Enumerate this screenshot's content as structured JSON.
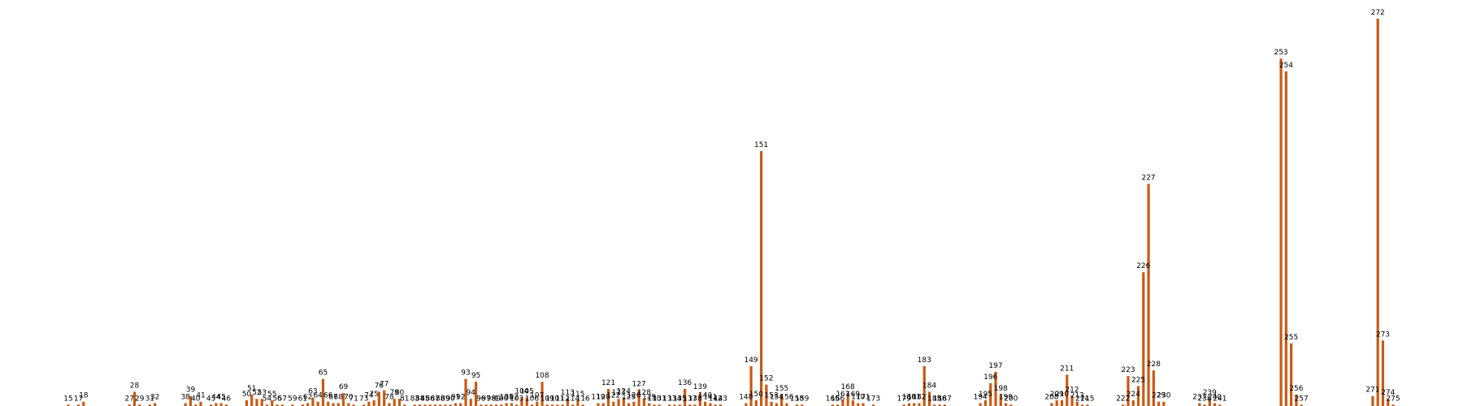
{
  "chart_data": {
    "type": "bar",
    "title": "",
    "xlabel": "",
    "ylabel": "",
    "ylim": [
      0,
      272
    ],
    "grid": false,
    "legend": "none",
    "bar_color": "#c85a14",
    "points": [
      {
        "label": "15",
        "x": 15,
        "value": 1
      },
      {
        "label": "17",
        "x": 17,
        "value": 1
      },
      {
        "label": "18",
        "x": 18,
        "value": 3
      },
      {
        "label": "27",
        "x": 27,
        "value": 1
      },
      {
        "label": "28",
        "x": 28,
        "value": 10
      },
      {
        "label": "29",
        "x": 29,
        "value": 1
      },
      {
        "label": "31",
        "x": 31,
        "value": 1
      },
      {
        "label": "32",
        "x": 32,
        "value": 2
      },
      {
        "label": "38",
        "x": 38,
        "value": 2
      },
      {
        "label": "39",
        "x": 39,
        "value": 7
      },
      {
        "label": "40",
        "x": 40,
        "value": 1
      },
      {
        "label": "41",
        "x": 41,
        "value": 3
      },
      {
        "label": "43",
        "x": 43,
        "value": 1
      },
      {
        "label": "44",
        "x": 44,
        "value": 2
      },
      {
        "label": "45",
        "x": 45,
        "value": 2
      },
      {
        "label": "46",
        "x": 46,
        "value": 1
      },
      {
        "label": "50",
        "x": 50,
        "value": 4
      },
      {
        "label": "51",
        "x": 51,
        "value": 8
      },
      {
        "label": "52",
        "x": 52,
        "value": 5
      },
      {
        "label": "53",
        "x": 53,
        "value": 5
      },
      {
        "label": "54",
        "x": 54,
        "value": 1
      },
      {
        "label": "55",
        "x": 55,
        "value": 4
      },
      {
        "label": "56",
        "x": 56,
        "value": 1
      },
      {
        "label": "57",
        "x": 57,
        "value": 1
      },
      {
        "label": "59",
        "x": 59,
        "value": 1
      },
      {
        "label": "61",
        "x": 61,
        "value": 1
      },
      {
        "label": "62",
        "x": 62,
        "value": 2
      },
      {
        "label": "63",
        "x": 63,
        "value": 6
      },
      {
        "label": "64",
        "x": 64,
        "value": 3
      },
      {
        "label": "65",
        "x": 65,
        "value": 19
      },
      {
        "label": "66",
        "x": 66,
        "value": 3
      },
      {
        "label": "67",
        "x": 67,
        "value": 2
      },
      {
        "label": "68",
        "x": 68,
        "value": 2
      },
      {
        "label": "69",
        "x": 69,
        "value": 9
      },
      {
        "label": "70",
        "x": 70,
        "value": 2
      },
      {
        "label": "71",
        "x": 71,
        "value": 1
      },
      {
        "label": "73",
        "x": 73,
        "value": 1
      },
      {
        "label": "74",
        "x": 74,
        "value": 3
      },
      {
        "label": "75",
        "x": 75,
        "value": 4
      },
      {
        "label": "76",
        "x": 76,
        "value": 10
      },
      {
        "label": "77",
        "x": 77,
        "value": 11
      },
      {
        "label": "78",
        "x": 78,
        "value": 2
      },
      {
        "label": "79",
        "x": 79,
        "value": 5
      },
      {
        "label": "80",
        "x": 80,
        "value": 5
      },
      {
        "label": "81",
        "x": 81,
        "value": 1
      },
      {
        "label": "83",
        "x": 83,
        "value": 1
      },
      {
        "label": "84",
        "x": 84,
        "value": 1
      },
      {
        "label": "85",
        "x": 85,
        "value": 1
      },
      {
        "label": "86",
        "x": 86,
        "value": 1
      },
      {
        "label": "87",
        "x": 87,
        "value": 1
      },
      {
        "label": "88",
        "x": 88,
        "value": 1
      },
      {
        "label": "89",
        "x": 89,
        "value": 1
      },
      {
        "label": "90",
        "x": 90,
        "value": 1
      },
      {
        "label": "91",
        "x": 91,
        "value": 2
      },
      {
        "label": "92",
        "x": 92,
        "value": 2
      },
      {
        "label": "93",
        "x": 93,
        "value": 19
      },
      {
        "label": "94",
        "x": 94,
        "value": 5
      },
      {
        "label": "95",
        "x": 95,
        "value": 17
      },
      {
        "label": "96",
        "x": 96,
        "value": 1
      },
      {
        "label": "97",
        "x": 97,
        "value": 1
      },
      {
        "label": "98",
        "x": 98,
        "value": 1
      },
      {
        "label": "99",
        "x": 99,
        "value": 1
      },
      {
        "label": "100",
        "x": 100,
        "value": 1
      },
      {
        "label": "101",
        "x": 101,
        "value": 2
      },
      {
        "label": "102",
        "x": 102,
        "value": 2
      },
      {
        "label": "103",
        "x": 103,
        "value": 1
      },
      {
        "label": "104",
        "x": 104,
        "value": 6
      },
      {
        "label": "105",
        "x": 105,
        "value": 6
      },
      {
        "label": "106",
        "x": 106,
        "value": 1
      },
      {
        "label": "107",
        "x": 107,
        "value": 3
      },
      {
        "label": "108",
        "x": 108,
        "value": 17
      },
      {
        "label": "109",
        "x": 109,
        "value": 1
      },
      {
        "label": "110",
        "x": 110,
        "value": 1
      },
      {
        "label": "111",
        "x": 111,
        "value": 1
      },
      {
        "label": "112",
        "x": 112,
        "value": 1
      },
      {
        "label": "113",
        "x": 113,
        "value": 5
      },
      {
        "label": "114",
        "x": 114,
        "value": 1
      },
      {
        "label": "115",
        "x": 115,
        "value": 4
      },
      {
        "label": "116",
        "x": 116,
        "value": 1
      },
      {
        "label": "119",
        "x": 119,
        "value": 2
      },
      {
        "label": "120",
        "x": 120,
        "value": 2
      },
      {
        "label": "121",
        "x": 121,
        "value": 12
      },
      {
        "label": "122",
        "x": 122,
        "value": 3
      },
      {
        "label": "123",
        "x": 123,
        "value": 5
      },
      {
        "label": "124",
        "x": 124,
        "value": 6
      },
      {
        "label": "125",
        "x": 125,
        "value": 2
      },
      {
        "label": "126",
        "x": 126,
        "value": 3
      },
      {
        "label": "127",
        "x": 127,
        "value": 11
      },
      {
        "label": "128",
        "x": 128,
        "value": 5
      },
      {
        "label": "129",
        "x": 129,
        "value": 2
      },
      {
        "label": "130",
        "x": 130,
        "value": 1
      },
      {
        "label": "131",
        "x": 131,
        "value": 1
      },
      {
        "label": "133",
        "x": 133,
        "value": 1
      },
      {
        "label": "134",
        "x": 134,
        "value": 1
      },
      {
        "label": "135",
        "x": 135,
        "value": 1
      },
      {
        "label": "136",
        "x": 136,
        "value": 12
      },
      {
        "label": "137",
        "x": 137,
        "value": 1
      },
      {
        "label": "138",
        "x": 138,
        "value": 1
      },
      {
        "label": "139",
        "x": 139,
        "value": 9
      },
      {
        "label": "140",
        "x": 140,
        "value": 3
      },
      {
        "label": "141",
        "x": 141,
        "value": 2
      },
      {
        "label": "142",
        "x": 142,
        "value": 1
      },
      {
        "label": "143",
        "x": 143,
        "value": 1
      },
      {
        "label": "148",
        "x": 148,
        "value": 2
      },
      {
        "label": "149",
        "x": 149,
        "value": 28
      },
      {
        "label": "150",
        "x": 150,
        "value": 4
      },
      {
        "label": "151",
        "x": 151,
        "value": 179
      },
      {
        "label": "152",
        "x": 152,
        "value": 15
      },
      {
        "label": "153",
        "x": 153,
        "value": 3
      },
      {
        "label": "154",
        "x": 154,
        "value": 2
      },
      {
        "label": "155",
        "x": 155,
        "value": 8
      },
      {
        "label": "156",
        "x": 156,
        "value": 2
      },
      {
        "label": "158",
        "x": 158,
        "value": 1
      },
      {
        "label": "159",
        "x": 159,
        "value": 1
      },
      {
        "label": "165",
        "x": 165,
        "value": 1
      },
      {
        "label": "166",
        "x": 166,
        "value": 1
      },
      {
        "label": "167",
        "x": 167,
        "value": 4
      },
      {
        "label": "168",
        "x": 168,
        "value": 9
      },
      {
        "label": "169",
        "x": 169,
        "value": 4
      },
      {
        "label": "170",
        "x": 170,
        "value": 2
      },
      {
        "label": "171",
        "x": 171,
        "value": 2
      },
      {
        "label": "173",
        "x": 173,
        "value": 1
      },
      {
        "label": "179",
        "x": 179,
        "value": 1
      },
      {
        "label": "180",
        "x": 180,
        "value": 2
      },
      {
        "label": "181",
        "x": 181,
        "value": 2
      },
      {
        "label": "182",
        "x": 182,
        "value": 2
      },
      {
        "label": "183",
        "x": 183,
        "value": 28
      },
      {
        "label": "184",
        "x": 184,
        "value": 10
      },
      {
        "label": "185",
        "x": 185,
        "value": 1
      },
      {
        "label": "186",
        "x": 186,
        "value": 1
      },
      {
        "label": "187",
        "x": 187,
        "value": 1
      },
      {
        "label": "194",
        "x": 194,
        "value": 2
      },
      {
        "label": "195",
        "x": 195,
        "value": 4
      },
      {
        "label": "196",
        "x": 196,
        "value": 16
      },
      {
        "label": "197",
        "x": 197,
        "value": 24
      },
      {
        "label": "198",
        "x": 198,
        "value": 8
      },
      {
        "label": "199",
        "x": 199,
        "value": 2
      },
      {
        "label": "200",
        "x": 200,
        "value": 1
      },
      {
        "label": "208",
        "x": 208,
        "value": 2
      },
      {
        "label": "209",
        "x": 209,
        "value": 4
      },
      {
        "label": "210",
        "x": 210,
        "value": 4
      },
      {
        "label": "211",
        "x": 211,
        "value": 22
      },
      {
        "label": "212",
        "x": 212,
        "value": 7
      },
      {
        "label": "213",
        "x": 213,
        "value": 3
      },
      {
        "label": "214",
        "x": 214,
        "value": 1
      },
      {
        "label": "215",
        "x": 215,
        "value": 1
      },
      {
        "label": "222",
        "x": 222,
        "value": 1
      },
      {
        "label": "223",
        "x": 223,
        "value": 21
      },
      {
        "label": "224",
        "x": 224,
        "value": 4
      },
      {
        "label": "225",
        "x": 225,
        "value": 14
      },
      {
        "label": "226",
        "x": 226,
        "value": 94
      },
      {
        "label": "227",
        "x": 227,
        "value": 156
      },
      {
        "label": "228",
        "x": 228,
        "value": 25
      },
      {
        "label": "229",
        "x": 229,
        "value": 3
      },
      {
        "label": "230",
        "x": 230,
        "value": 3
      },
      {
        "label": "237",
        "x": 237,
        "value": 2
      },
      {
        "label": "238",
        "x": 238,
        "value": 1
      },
      {
        "label": "239",
        "x": 239,
        "value": 5
      },
      {
        "label": "240",
        "x": 240,
        "value": 2
      },
      {
        "label": "241",
        "x": 241,
        "value": 1
      },
      {
        "label": "253",
        "x": 253,
        "value": 244
      },
      {
        "label": "254",
        "x": 254,
        "value": 235
      },
      {
        "label": "255",
        "x": 255,
        "value": 44
      },
      {
        "label": "256",
        "x": 256,
        "value": 8
      },
      {
        "label": "257",
        "x": 257,
        "value": 1
      },
      {
        "label": "271",
        "x": 271,
        "value": 7
      },
      {
        "label": "272",
        "x": 272,
        "value": 272
      },
      {
        "label": "273",
        "x": 273,
        "value": 46
      },
      {
        "label": "274",
        "x": 274,
        "value": 5
      },
      {
        "label": "275",
        "x": 275,
        "value": 1
      }
    ]
  }
}
